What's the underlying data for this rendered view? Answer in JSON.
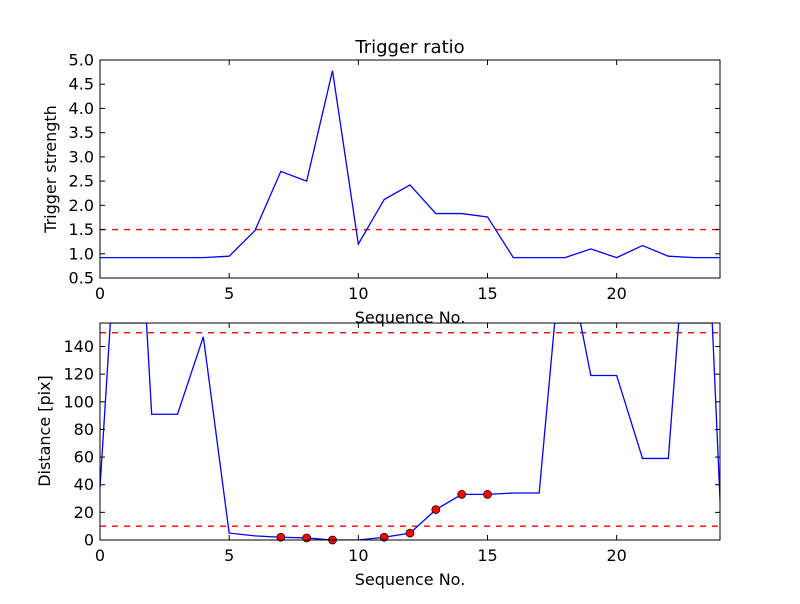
{
  "chart_data": [
    {
      "type": "line",
      "title": "Trigger ratio",
      "xlabel": "Sequence No.",
      "ylabel": "Trigger strength",
      "xlim": [
        0,
        24
      ],
      "ylim": [
        0.5,
        5.0
      ],
      "xticks": [
        0,
        5,
        10,
        15,
        20
      ],
      "xtick_labels": [
        "0",
        "5",
        "10",
        "15",
        "20"
      ],
      "yticks": [
        0.5,
        1.0,
        1.5,
        2.0,
        2.5,
        3.0,
        3.5,
        4.0,
        4.5,
        5.0
      ],
      "ytick_labels": [
        "0.5",
        "1.0",
        "1.5",
        "2.0",
        "2.5",
        "3.0",
        "3.5",
        "4.0",
        "4.5",
        "5.0"
      ],
      "grid": false,
      "series": [
        {
          "color": "#0000ff",
          "style": "solid",
          "x": [
            0,
            1,
            2,
            3,
            4,
            5,
            6,
            7,
            8,
            9,
            10,
            11,
            12,
            13,
            14,
            15,
            16,
            17,
            18,
            19,
            20,
            21,
            22,
            23,
            24
          ],
          "y": [
            0.92,
            0.92,
            0.92,
            0.92,
            0.92,
            0.95,
            1.48,
            2.7,
            2.5,
            4.78,
            1.2,
            2.12,
            2.42,
            1.83,
            1.83,
            1.76,
            0.92,
            0.92,
            0.92,
            1.1,
            0.92,
            1.17,
            0.95,
            0.92,
            0.92
          ]
        }
      ],
      "hlines": [
        {
          "y": 1.5,
          "color": "#ff0000",
          "style": "dashed"
        }
      ]
    },
    {
      "type": "line",
      "title": "",
      "xlabel": "Sequence No.",
      "ylabel": "Distance [pix]",
      "xlim": [
        0,
        24
      ],
      "ylim": [
        0,
        157
      ],
      "xticks": [
        0,
        5,
        10,
        15,
        20
      ],
      "xtick_labels": [
        "0",
        "5",
        "10",
        "15",
        "20"
      ],
      "yticks": [
        0,
        20,
        40,
        60,
        80,
        100,
        120,
        140
      ],
      "ytick_labels": [
        "0",
        "20",
        "40",
        "60",
        "80",
        "100",
        "120",
        "140"
      ],
      "grid": false,
      "series": [
        {
          "color": "#0000ff",
          "style": "solid",
          "x": [
            0,
            0.4,
            1.8,
            2,
            3,
            4,
            5,
            6,
            7,
            8,
            9,
            10,
            11,
            12,
            13,
            14,
            15,
            16,
            17,
            17.6,
            18.6,
            19,
            20,
            21,
            22,
            22.4,
            23.7,
            24
          ],
          "y": [
            38,
            157,
            157,
            91,
            91,
            147,
            5,
            3,
            2,
            1.5,
            0,
            0,
            2,
            5,
            22,
            33,
            33,
            34,
            34,
            157,
            157,
            119,
            119,
            59,
            59,
            157,
            157,
            29
          ]
        }
      ],
      "markers": {
        "color": "#ff0000",
        "x": [
          7,
          8,
          9,
          11,
          12,
          13,
          14,
          15
        ],
        "y": [
          2,
          1.5,
          0,
          2,
          5,
          22,
          33,
          33
        ]
      },
      "hlines": [
        {
          "y": 150,
          "color": "#ff0000",
          "style": "dashed"
        },
        {
          "y": 10,
          "color": "#ff0000",
          "style": "dashed"
        }
      ]
    }
  ]
}
